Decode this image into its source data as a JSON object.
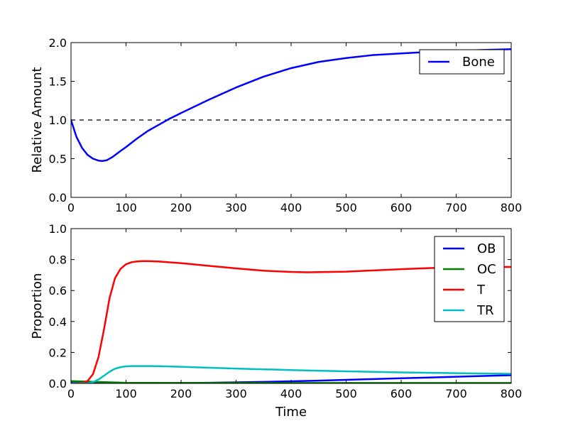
{
  "chart_data": [
    {
      "type": "line",
      "title": "",
      "xlabel": "",
      "ylabel": "Relative Amount",
      "xlim": [
        0,
        800
      ],
      "ylim": [
        0,
        2.0
      ],
      "xticks": [
        0,
        100,
        200,
        300,
        400,
        500,
        600,
        700,
        800
      ],
      "yticks": [
        0.0,
        0.5,
        1.0,
        1.5,
        2.0
      ],
      "xtick_labels": [
        "0",
        "100",
        "200",
        "300",
        "400",
        "500",
        "600",
        "700",
        "800"
      ],
      "ytick_labels": [
        "0.0",
        "0.5",
        "1.0",
        "1.5",
        "2.0"
      ],
      "grid": false,
      "legend": "top-right",
      "reference_line": {
        "y": 1.0,
        "style": "dashed",
        "color": "#000000"
      },
      "series": [
        {
          "name": "Bone",
          "color": "#0000ff",
          "x": [
            0,
            10,
            20,
            30,
            40,
            50,
            57,
            65,
            75,
            90,
            100,
            120,
            140,
            160,
            180,
            200,
            250,
            300,
            350,
            400,
            450,
            500,
            550,
            600,
            650,
            700,
            750,
            800
          ],
          "y": [
            1.0,
            0.78,
            0.64,
            0.55,
            0.5,
            0.475,
            0.47,
            0.48,
            0.52,
            0.6,
            0.65,
            0.76,
            0.86,
            0.94,
            1.02,
            1.09,
            1.26,
            1.42,
            1.56,
            1.67,
            1.75,
            1.8,
            1.84,
            1.86,
            1.88,
            1.895,
            1.905,
            1.915
          ]
        }
      ]
    },
    {
      "type": "line",
      "title": "",
      "xlabel": "Time",
      "ylabel": "Proportion",
      "xlim": [
        0,
        800
      ],
      "ylim": [
        0,
        1.0
      ],
      "xticks": [
        0,
        100,
        200,
        300,
        400,
        500,
        600,
        700,
        800
      ],
      "yticks": [
        0.0,
        0.2,
        0.4,
        0.6,
        0.8,
        1.0
      ],
      "xtick_labels": [
        "0",
        "100",
        "200",
        "300",
        "400",
        "500",
        "600",
        "700",
        "800"
      ],
      "ytick_labels": [
        "0.0",
        "0.2",
        "0.4",
        "0.6",
        "0.8",
        "1.0"
      ],
      "grid": false,
      "legend": "top-right",
      "series": [
        {
          "name": "OB",
          "color": "#0000ff",
          "x": [
            0,
            50,
            100,
            150,
            200,
            250,
            300,
            350,
            400,
            450,
            500,
            550,
            600,
            650,
            700,
            750,
            800
          ],
          "y": [
            0.01,
            0.004,
            0.002,
            0.002,
            0.003,
            0.004,
            0.007,
            0.01,
            0.014,
            0.018,
            0.023,
            0.028,
            0.033,
            0.038,
            0.043,
            0.048,
            0.053
          ]
        },
        {
          "name": "OC",
          "color": "#008000",
          "x": [
            0,
            100,
            200,
            300,
            400,
            500,
            600,
            700,
            800
          ],
          "y": [
            0.015,
            0.004,
            0.003,
            0.003,
            0.003,
            0.003,
            0.003,
            0.003,
            0.003
          ]
        },
        {
          "name": "T",
          "color": "#ff0000",
          "x": [
            0,
            20,
            30,
            40,
            50,
            60,
            70,
            80,
            90,
            100,
            110,
            120,
            130,
            140,
            160,
            200,
            250,
            300,
            350,
            400,
            430,
            500,
            550,
            600,
            650,
            700,
            750,
            800
          ],
          "y": [
            0.0,
            0.003,
            0.015,
            0.06,
            0.17,
            0.35,
            0.55,
            0.68,
            0.74,
            0.77,
            0.783,
            0.788,
            0.79,
            0.79,
            0.787,
            0.777,
            0.76,
            0.743,
            0.728,
            0.72,
            0.718,
            0.722,
            0.73,
            0.738,
            0.745,
            0.75,
            0.752,
            0.752
          ]
        },
        {
          "name": "TR",
          "color": "#00bfbf",
          "x": [
            0,
            30,
            40,
            50,
            60,
            70,
            80,
            90,
            100,
            110,
            120,
            140,
            160,
            200,
            300,
            400,
            500,
            600,
            700,
            800
          ],
          "y": [
            0.0,
            0.0,
            0.008,
            0.025,
            0.05,
            0.075,
            0.095,
            0.105,
            0.11,
            0.112,
            0.112,
            0.112,
            0.111,
            0.107,
            0.096,
            0.086,
            0.078,
            0.071,
            0.066,
            0.062
          ]
        }
      ]
    }
  ]
}
